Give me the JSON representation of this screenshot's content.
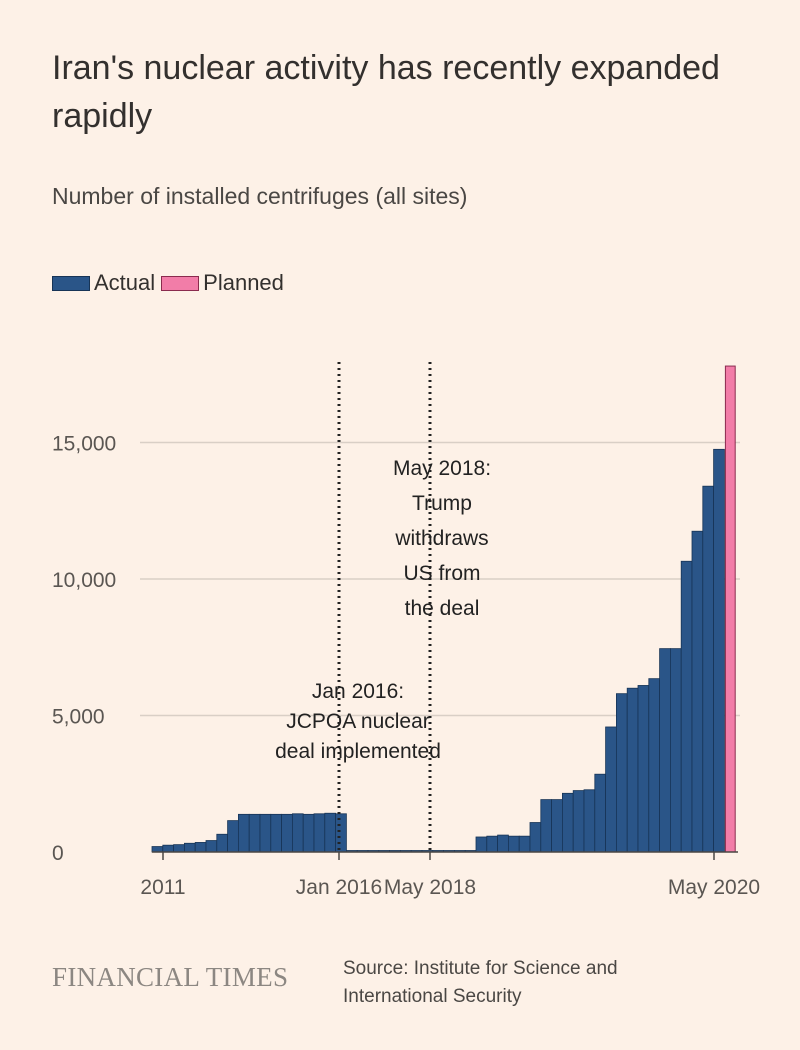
{
  "header": {
    "title": "Iran's nuclear activity has recently expanded rapidly",
    "subtitle": "Number of installed centrifuges (all sites)"
  },
  "legend": {
    "actual": "Actual",
    "planned": "Planned"
  },
  "colors": {
    "actual": "#2a5588",
    "actual_edge": "#173456",
    "planned": "#f27da8",
    "planned_edge": "#8a2b4e",
    "grid": "#d9cfc6",
    "background": "#fdf1e7"
  },
  "chart_data": {
    "type": "bar",
    "title": "Iran's nuclear activity has recently expanded rapidly",
    "ylabel": "Number of installed centrifuges (all sites)",
    "xlabel": "",
    "ylim": [
      0,
      18000
    ],
    "yticks": [
      0,
      5000,
      10000,
      15000
    ],
    "ytick_labels": [
      "0",
      "5,000",
      "10,000",
      "15,000"
    ],
    "xtick_labels": [
      {
        "label": "2011",
        "index": 0
      },
      {
        "label": "Jan 2016",
        "index": 17
      },
      {
        "label": "May 2018",
        "index": 25
      },
      {
        "label": "May 2020",
        "index": 50
      }
    ],
    "series": [
      {
        "name": "Actual",
        "values": [
          200,
          250,
          270,
          320,
          350,
          420,
          650,
          1150,
          1380,
          1380,
          1380,
          1380,
          1380,
          1400,
          1380,
          1400,
          1420,
          1400,
          50,
          50,
          50,
          50,
          50,
          50,
          50,
          50,
          50,
          50,
          50,
          50,
          550,
          580,
          620,
          580,
          580,
          1080,
          1920,
          1920,
          2150,
          2250,
          2280,
          2850,
          4580,
          5800,
          6000,
          6100,
          6350,
          7450,
          7450,
          10650,
          11750,
          13400,
          14750
        ]
      },
      {
        "name": "Planned",
        "values": [
          17800
        ]
      }
    ],
    "annotations": [
      {
        "lines": [
          "Jan 2016:",
          "JCPOA nuclear",
          "deal implemented"
        ],
        "at_index": 17
      },
      {
        "lines": [
          "May 2018:",
          "Trump",
          "withdraws",
          "US from",
          "the deal"
        ],
        "at_index": 25
      }
    ]
  },
  "footer": {
    "brand": "FINANCIAL TIMES",
    "source_line1": "Source: Institute for Science and",
    "source_line2": "International Security"
  }
}
